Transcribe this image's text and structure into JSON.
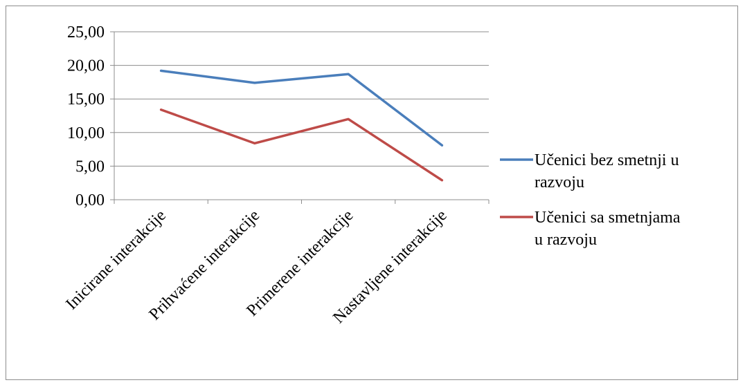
{
  "chart_data": {
    "type": "line",
    "categories": [
      "Inicirane interakcije",
      "Prihvaćene interakcije",
      "Primerene interakcije",
      "Nastavljene interakcije"
    ],
    "series": [
      {
        "name": "Učenici bez smetnji u razvoju",
        "values": [
          19.2,
          17.4,
          18.7,
          8.1
        ],
        "color": "#4a7ebb"
      },
      {
        "name": "Učenici sa smetnjama u razvoju",
        "values": [
          13.4,
          8.4,
          12.0,
          2.9
        ],
        "color": "#be4b48"
      }
    ],
    "yticks": [
      "0,00",
      "5,00",
      "10,00",
      "15,00",
      "20,00",
      "25,00"
    ],
    "ylim": [
      0,
      25
    ],
    "grid": true,
    "legend_position": "right"
  }
}
